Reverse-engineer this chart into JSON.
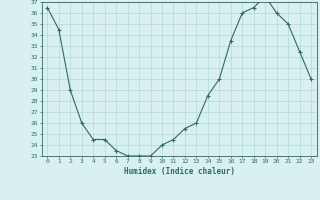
{
  "x": [
    0,
    1,
    2,
    3,
    4,
    5,
    6,
    7,
    8,
    9,
    10,
    11,
    12,
    13,
    14,
    15,
    16,
    17,
    18,
    19,
    20,
    21,
    22,
    23
  ],
  "y": [
    36.5,
    34.5,
    29.0,
    26.0,
    24.5,
    24.5,
    23.5,
    23.0,
    23.0,
    23.0,
    24.0,
    24.5,
    25.5,
    26.0,
    28.5,
    30.0,
    33.5,
    36.0,
    36.5,
    37.5,
    36.0,
    35.0,
    32.5,
    30.0
  ],
  "xlim": [
    -0.5,
    23.5
  ],
  "ylim": [
    23,
    37
  ],
  "yticks": [
    23,
    24,
    25,
    26,
    27,
    28,
    29,
    30,
    31,
    32,
    33,
    34,
    35,
    36,
    37
  ],
  "xticks": [
    0,
    1,
    2,
    3,
    4,
    5,
    6,
    7,
    8,
    9,
    10,
    11,
    12,
    13,
    14,
    15,
    16,
    17,
    18,
    19,
    20,
    21,
    22,
    23
  ],
  "xlabel": "Humidex (Indice chaleur)",
  "line_color": "#2e6b5e",
  "marker": "+",
  "bg_color": "#d8f0f0",
  "grid_color": "#b0d8d8",
  "title": ""
}
